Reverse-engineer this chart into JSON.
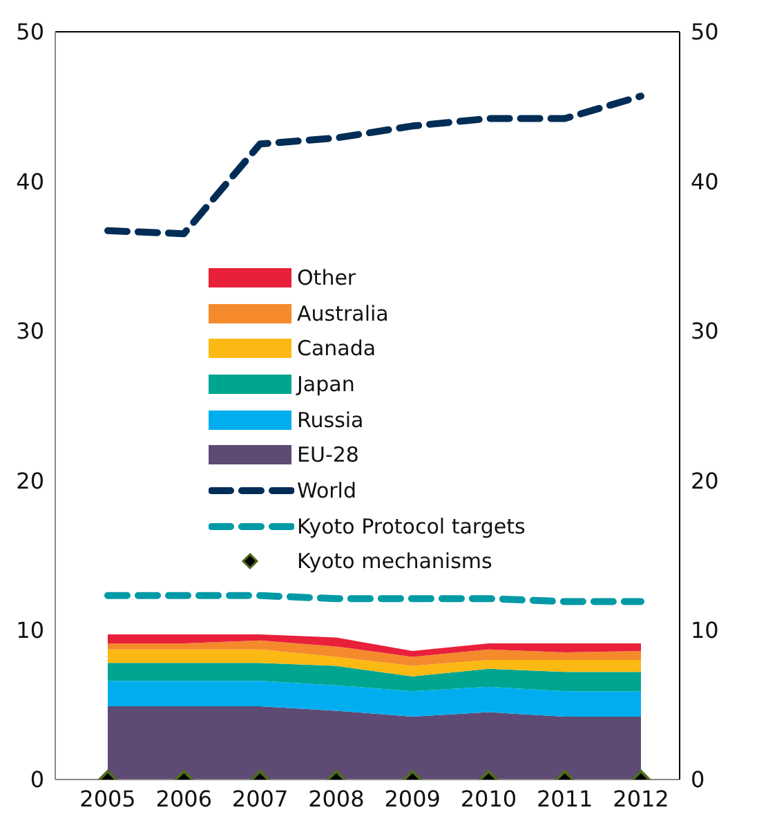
{
  "chart_data": {
    "type": "area",
    "stacked": true,
    "categories": [
      "2005",
      "2006",
      "2007",
      "2008",
      "2009",
      "2010",
      "2011",
      "2012"
    ],
    "series": [
      {
        "name": "EU-28",
        "color": "#5e4a74",
        "values": [
          4.9,
          4.9,
          4.9,
          4.6,
          4.2,
          4.5,
          4.2,
          4.2
        ]
      },
      {
        "name": "Russia",
        "color": "#00aeef",
        "values": [
          1.7,
          1.7,
          1.7,
          1.7,
          1.7,
          1.7,
          1.7,
          1.7
        ]
      },
      {
        "name": "Japan",
        "color": "#00a591",
        "values": [
          1.2,
          1.2,
          1.2,
          1.3,
          1.0,
          1.2,
          1.3,
          1.3
        ]
      },
      {
        "name": "Canada",
        "color": "#fdb913",
        "values": [
          0.9,
          0.9,
          0.9,
          0.6,
          0.7,
          0.6,
          0.8,
          0.8
        ]
      },
      {
        "name": "Australia",
        "color": "#f58a2c",
        "values": [
          0.4,
          0.4,
          0.6,
          0.7,
          0.6,
          0.7,
          0.5,
          0.6
        ]
      },
      {
        "name": "Other",
        "color": "#e8203a",
        "values": [
          0.6,
          0.6,
          0.4,
          0.6,
          0.4,
          0.4,
          0.6,
          0.5
        ]
      },
      {
        "name": "World",
        "type": "line",
        "line_style": "dashed",
        "color": "#002d56",
        "values": [
          36.7,
          36.5,
          42.5,
          42.9,
          43.7,
          44.2,
          44.2,
          45.7
        ]
      },
      {
        "name": "Kyoto Protocol targets",
        "type": "line",
        "line_style": "dashed",
        "color": "#009aa6",
        "values": [
          12.3,
          12.3,
          12.3,
          12.1,
          12.1,
          12.1,
          11.9,
          11.9
        ]
      },
      {
        "name": "Kyoto mechanisms",
        "type": "scatter",
        "marker": "diamond",
        "color": "#000000",
        "values": [
          0,
          0,
          0,
          0,
          0,
          0,
          0,
          0
        ]
      }
    ],
    "ylim": [
      0,
      50
    ],
    "yticks": [
      0,
      10,
      20,
      30,
      40,
      50
    ],
    "y2lim": [
      0,
      50
    ],
    "y2ticks": [
      0,
      10,
      20,
      30,
      40,
      50
    ],
    "grid": false,
    "legend": "left"
  }
}
